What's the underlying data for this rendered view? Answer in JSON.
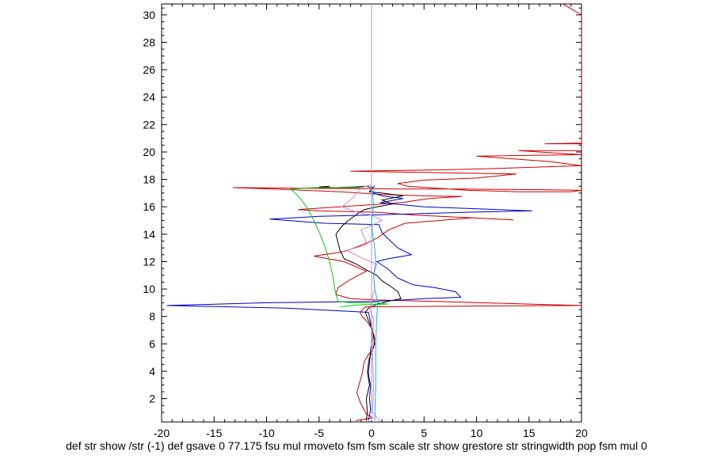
{
  "chart_data": {
    "type": "line",
    "title": "",
    "xlabel": "def str show /str (-1) def gsave 0 77.175 fsu mul rmoveto fsm fsm scale str show grestore str stringwidth pop fsm mul 0",
    "ylabel": "",
    "xlim": [
      -20,
      20
    ],
    "ylim": [
      0.3,
      30.8
    ],
    "x_ticks": [
      -20,
      -15,
      -10,
      -5,
      0,
      5,
      10,
      15,
      20
    ],
    "y_ticks": [
      2,
      4,
      6,
      8,
      10,
      12,
      14,
      16,
      18,
      20,
      22,
      24,
      26,
      28,
      30
    ],
    "grid": false,
    "series": [
      {
        "name": "red",
        "color": "#cc0000",
        "points": [
          [
            -1.5,
            0.4
          ],
          [
            0.1,
            0.6
          ],
          [
            -0.5,
            0.9
          ],
          [
            -1.0,
            1.6
          ],
          [
            -1.4,
            2.4
          ],
          [
            -1.2,
            3.0
          ],
          [
            -0.9,
            3.8
          ],
          [
            -0.7,
            4.7
          ],
          [
            -0.3,
            5.2
          ],
          [
            0.2,
            5.7
          ],
          [
            0.3,
            6.4
          ],
          [
            0.1,
            7.0
          ],
          [
            -0.4,
            7.6
          ],
          [
            -0.9,
            8.0
          ],
          [
            -1.1,
            8.3
          ],
          [
            -0.6,
            8.7
          ],
          [
            8,
            8.75
          ],
          [
            20,
            8.8
          ],
          [
            15,
            8.9
          ],
          [
            6,
            9.1
          ],
          [
            0.3,
            9.2
          ],
          [
            -2,
            9.3
          ],
          [
            -3.4,
            9.6
          ],
          [
            -3.2,
            10.1
          ],
          [
            -2,
            10.7
          ],
          [
            -0.5,
            11.3
          ],
          [
            -2.6,
            12.0
          ],
          [
            -5.5,
            12.4
          ],
          [
            -2.8,
            12.7
          ],
          [
            -0.8,
            13.2
          ],
          [
            0.7,
            13.8
          ],
          [
            1.6,
            14.3
          ],
          [
            3.2,
            14.8
          ],
          [
            9.6,
            15.2
          ],
          [
            13.5,
            15.05
          ],
          [
            4,
            15.4
          ],
          [
            0.6,
            15.6
          ],
          [
            -5,
            15.7
          ],
          [
            -7,
            15.8
          ],
          [
            -3,
            16.0
          ],
          [
            2.8,
            16.3
          ],
          [
            5.5,
            16.6
          ],
          [
            8.6,
            16.75
          ],
          [
            5,
            16.8
          ],
          [
            1,
            16.9
          ],
          [
            -3,
            17.1
          ],
          [
            -9.4,
            17.3
          ],
          [
            -13.2,
            17.4
          ],
          [
            3,
            17.3
          ],
          [
            8,
            17.3
          ],
          [
            16.3,
            17.25
          ],
          [
            20,
            17.2
          ],
          [
            19,
            17.1
          ],
          [
            14,
            17.1
          ],
          [
            9.2,
            17.2
          ],
          [
            3.4,
            17.5
          ],
          [
            2.5,
            17.7
          ],
          [
            5,
            17.95
          ],
          [
            10,
            18.1
          ],
          [
            13.8,
            18.4
          ],
          [
            5,
            18.5
          ],
          [
            -2,
            18.6
          ],
          [
            7,
            18.7
          ],
          [
            12,
            18.8
          ],
          [
            20,
            19.0
          ],
          [
            17,
            19.3
          ],
          [
            10,
            19.7
          ],
          [
            20,
            19.8
          ],
          [
            14,
            20.1
          ],
          [
            20,
            20.1
          ],
          [
            20,
            20.6
          ],
          [
            16.5,
            20.6
          ],
          [
            20,
            20.65
          ],
          [
            20,
            30.0
          ],
          [
            18,
            30.9
          ],
          [
            0,
            30.9
          ]
        ]
      },
      {
        "name": "blue",
        "color": "#0000cc",
        "points": [
          [
            -0.3,
            0.4
          ],
          [
            -0.1,
            1.2
          ],
          [
            -0.2,
            2.0
          ],
          [
            -0.1,
            3.0
          ],
          [
            -0.3,
            3.8
          ],
          [
            -0.2,
            4.6
          ],
          [
            -0.1,
            5.5
          ],
          [
            0.1,
            6.5
          ],
          [
            -0.1,
            7.6
          ],
          [
            -0.3,
            8.3
          ],
          [
            -8,
            8.6
          ],
          [
            -19.5,
            8.8
          ],
          [
            -10,
            9.0
          ],
          [
            0,
            9.1
          ],
          [
            3,
            9.2
          ],
          [
            5,
            9.3
          ],
          [
            8.5,
            9.4
          ],
          [
            8,
            9.8
          ],
          [
            6,
            10.1
          ],
          [
            4,
            10.3
          ],
          [
            2.5,
            10.8
          ],
          [
            1.5,
            11.5
          ],
          [
            0.5,
            12.0
          ],
          [
            1.5,
            12.2
          ],
          [
            3.8,
            12.5
          ],
          [
            2.5,
            13.0
          ],
          [
            1.8,
            13.5
          ],
          [
            1.0,
            14.1
          ],
          [
            0.7,
            14.7
          ],
          [
            -4.5,
            14.8
          ],
          [
            -9.7,
            15.1
          ],
          [
            -5,
            15.3
          ],
          [
            0,
            15.4
          ],
          [
            9,
            15.6
          ],
          [
            15.3,
            15.7
          ],
          [
            5,
            16.0
          ],
          [
            0.8,
            16.3
          ],
          [
            3,
            16.6
          ],
          [
            1.0,
            16.8
          ],
          [
            0.2,
            17.0
          ],
          [
            -0.1,
            17.2
          ],
          [
            0.2,
            17.5
          ]
        ]
      },
      {
        "name": "black",
        "color": "#000000",
        "points": [
          [
            -0.5,
            0.4
          ],
          [
            -0.4,
            1.0
          ],
          [
            -0.5,
            2.0
          ],
          [
            -0.2,
            3.0
          ],
          [
            -0.4,
            4.0
          ],
          [
            -0.2,
            5.0
          ],
          [
            0.3,
            6.0
          ],
          [
            0.1,
            7.0
          ],
          [
            -0.4,
            7.9
          ],
          [
            -0.6,
            8.3
          ],
          [
            -0.3,
            8.6
          ],
          [
            0.6,
            8.9
          ],
          [
            1.5,
            9.1
          ],
          [
            2.8,
            9.3
          ],
          [
            2.5,
            9.8
          ],
          [
            1.8,
            10.2
          ],
          [
            1.0,
            10.6
          ],
          [
            0.5,
            11.0
          ],
          [
            -0.5,
            11.4
          ],
          [
            -1.4,
            11.8
          ],
          [
            -2.6,
            12.2
          ],
          [
            -3.0,
            12.8
          ],
          [
            -3.2,
            13.4
          ],
          [
            -3.4,
            14.0
          ],
          [
            -2.8,
            14.6
          ],
          [
            -2.2,
            15.0
          ],
          [
            -1.5,
            15.4
          ],
          [
            -0.7,
            15.8
          ],
          [
            0.5,
            16.0
          ],
          [
            2,
            16.2
          ],
          [
            1,
            16.5
          ],
          [
            3,
            16.8
          ],
          [
            1,
            17.0
          ],
          [
            -0.2,
            17.1
          ],
          [
            0.1,
            17.4
          ],
          [
            -0.6,
            17.5
          ],
          [
            -1.5,
            17.45
          ],
          [
            -3.5,
            17.4
          ],
          [
            -5,
            17.45
          ],
          [
            -4,
            17.5
          ]
        ]
      },
      {
        "name": "green",
        "color": "#00cc00",
        "points": [
          [
            -3.0,
            8.7
          ],
          [
            -1.2,
            8.85
          ],
          [
            1.6,
            8.9
          ],
          [
            0.5,
            9.0
          ],
          [
            -2.0,
            9.0
          ],
          [
            -3.2,
            9.1
          ],
          [
            -3.5,
            10.0
          ],
          [
            -3.7,
            11.0
          ],
          [
            -4.0,
            12.0
          ],
          [
            -4.4,
            13.0
          ],
          [
            -4.9,
            14.0
          ],
          [
            -5.5,
            15.0
          ],
          [
            -6.2,
            16.0
          ],
          [
            -7.0,
            16.8
          ],
          [
            -7.7,
            17.3
          ],
          [
            -5.5,
            17.4
          ],
          [
            -3.0,
            17.4
          ],
          [
            -1.0,
            17.4
          ]
        ]
      },
      {
        "name": "violet",
        "color": "#cc88cc",
        "points": [
          [
            0,
            0.4
          ],
          [
            0,
            30.8
          ],
          [
            0,
            17.6
          ],
          [
            -1.0,
            17.4
          ],
          [
            -1.6,
            16.8
          ],
          [
            -2.8,
            16.0
          ],
          [
            -1.4,
            15.6
          ],
          [
            0,
            15.4
          ],
          [
            1,
            15.0
          ],
          [
            -1.0,
            14.3
          ],
          [
            -0.5,
            13.4
          ],
          [
            -2.3,
            12.8
          ],
          [
            -1.0,
            12.3
          ],
          [
            0.5,
            11.8
          ],
          [
            0.2,
            11.0
          ],
          [
            0.3,
            10.0
          ],
          [
            0,
            9.2
          ],
          [
            -0.2,
            8.5
          ],
          [
            0.2,
            7.8
          ],
          [
            0.1,
            6.5
          ],
          [
            0.1,
            5.0
          ],
          [
            0.2,
            3.0
          ],
          [
            0.1,
            1.0
          ],
          [
            0.8,
            0.4
          ]
        ]
      },
      {
        "name": "cyan",
        "color": "#00bbdd",
        "points": [
          [
            0.3,
            0.4
          ],
          [
            0.4,
            3.0
          ],
          [
            0.4,
            6.0
          ],
          [
            0.5,
            8.0
          ],
          [
            0.6,
            9.0
          ],
          [
            0.3,
            10.0
          ],
          [
            0.2,
            11.0
          ],
          [
            0.4,
            12.0
          ],
          [
            0.3,
            13.0
          ],
          [
            0.1,
            14.0
          ],
          [
            0.0,
            15.0
          ],
          [
            0.2,
            16.0
          ],
          [
            0.1,
            17.0
          ],
          [
            0.3,
            17.6
          ]
        ]
      }
    ]
  }
}
